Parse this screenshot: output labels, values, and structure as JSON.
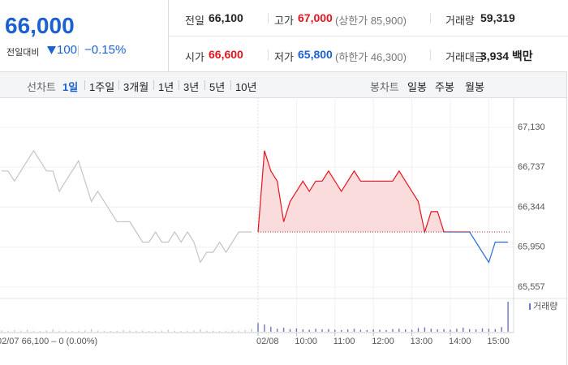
{
  "header": {
    "price": "66,000",
    "change_label": "전일대비",
    "change": "100",
    "change_pct": "−0.15%",
    "stats": [
      [
        {
          "label": "전일",
          "value": "66,100"
        },
        {
          "label": "고가",
          "value": "67,000",
          "sub": "(상한가 85,900)"
        },
        {
          "label": "거래량",
          "value": "59,319"
        }
      ],
      [
        {
          "label": "시가",
          "value": "66,600"
        },
        {
          "label": "저가",
          "value": "65,800",
          "sub": "(하한가 46,300)"
        },
        {
          "label": "거래대금",
          "value": "3,934 백만"
        }
      ]
    ]
  },
  "tabs": {
    "line_label": "선차트",
    "line_items": [
      "1일",
      "1주일",
      "3개월",
      "1년",
      "3년",
      "5년",
      "10년"
    ],
    "selected": 0,
    "candle_label": "봉차트",
    "candle_items": [
      "일봉",
      "주봉",
      "월봉"
    ]
  },
  "chart_data": {
    "type": "line",
    "categories": [
      null,
      null,
      null,
      null,
      null,
      null,
      null,
      null,
      null,
      null,
      null,
      null,
      null,
      null,
      null,
      null,
      null,
      null,
      null,
      null,
      null,
      null,
      null,
      null,
      null,
      null,
      null,
      null,
      null,
      null,
      null,
      null,
      null,
      null,
      null,
      null,
      null,
      null,
      null,
      null,
      "02/08",
      null,
      null,
      null,
      null,
      null,
      "10:00",
      null,
      null,
      null,
      null,
      null,
      "11:00",
      null,
      null,
      null,
      null,
      null,
      "12:00",
      null,
      null,
      null,
      null,
      null,
      "13:00",
      null,
      null,
      null,
      null,
      null,
      "14:00",
      null,
      null,
      null,
      null,
      null,
      "15:00",
      null,
      null,
      null
    ],
    "series": [
      {
        "color": "#c4c4c4",
        "values": [
          66700,
          66700,
          66600,
          66700,
          66800,
          66900,
          66800,
          66700,
          66700,
          66500,
          66600,
          66700,
          66800,
          66600,
          66400,
          66500,
          66400,
          66300,
          66200,
          66200,
          66200,
          66100,
          66000,
          66000,
          66100,
          66000,
          66000,
          66100,
          66000,
          66100,
          66000,
          65800,
          65900,
          65900,
          66000,
          65900,
          66000,
          66100,
          66100,
          66100,
          null,
          null,
          null,
          null,
          null,
          null,
          null,
          null,
          null,
          null,
          null,
          null,
          null,
          null,
          null,
          null,
          null,
          null,
          null,
          null,
          null,
          null,
          null,
          null,
          null,
          null,
          null,
          null,
          null,
          null,
          null,
          null,
          null,
          null,
          null,
          null,
          null,
          null,
          null,
          null
        ]
      },
      {
        "color": "#e5141e",
        "color_below": "#2a6bd6",
        "fill": "#fbdcdc",
        "values": [
          null,
          null,
          null,
          null,
          null,
          null,
          null,
          null,
          null,
          null,
          null,
          null,
          null,
          null,
          null,
          null,
          null,
          null,
          null,
          null,
          null,
          null,
          null,
          null,
          null,
          null,
          null,
          null,
          null,
          null,
          null,
          null,
          null,
          null,
          null,
          null,
          null,
          null,
          null,
          null,
          66100,
          66900,
          66700,
          66600,
          66200,
          66400,
          66500,
          66600,
          66500,
          66600,
          66600,
          66700,
          66600,
          66500,
          66600,
          66700,
          66600,
          66600,
          66600,
          66600,
          66600,
          66600,
          66700,
          66600,
          66500,
          66400,
          66100,
          66300,
          66300,
          66100,
          66100,
          66100,
          66100,
          66100,
          66000,
          65900,
          65800,
          66000,
          66000,
          66000
        ]
      }
    ],
    "baseline": 66100,
    "ylim": [
      65469,
      67409
    ],
    "yticks": [
      {
        "value": 67130,
        "label": "67,130"
      },
      {
        "value": 66737,
        "label": "66,737"
      },
      {
        "value": 66344,
        "label": "66,344"
      },
      {
        "value": 65950,
        "label": "65,950"
      },
      {
        "value": 65557,
        "label": "65,557"
      }
    ],
    "grid": true,
    "volume_label": "거래량",
    "volume_colors": [
      "#c3c8d8",
      "#6d72c9"
    ],
    "volume": [
      400,
      300,
      500,
      350,
      600,
      300,
      250,
      400,
      700,
      300,
      350,
      250,
      300,
      400,
      800,
      350,
      300,
      250,
      300,
      500,
      350,
      300,
      400,
      250,
      300,
      350,
      600,
      300,
      250,
      300,
      400,
      700,
      350,
      300,
      250,
      300,
      400,
      350,
      500,
      900,
      2600,
      2200,
      1500,
      900,
      1200,
      800,
      1000,
      700,
      600,
      900,
      700,
      800,
      600,
      500,
      700,
      900,
      600,
      500,
      700,
      600,
      500,
      800,
      900,
      700,
      600,
      1100,
      1300,
      900,
      700,
      800,
      600,
      900,
      1200,
      800,
      700,
      1000,
      900,
      800,
      1400,
      9000
    ],
    "note": "02/07  66,100 – 0 (0.00%)"
  }
}
